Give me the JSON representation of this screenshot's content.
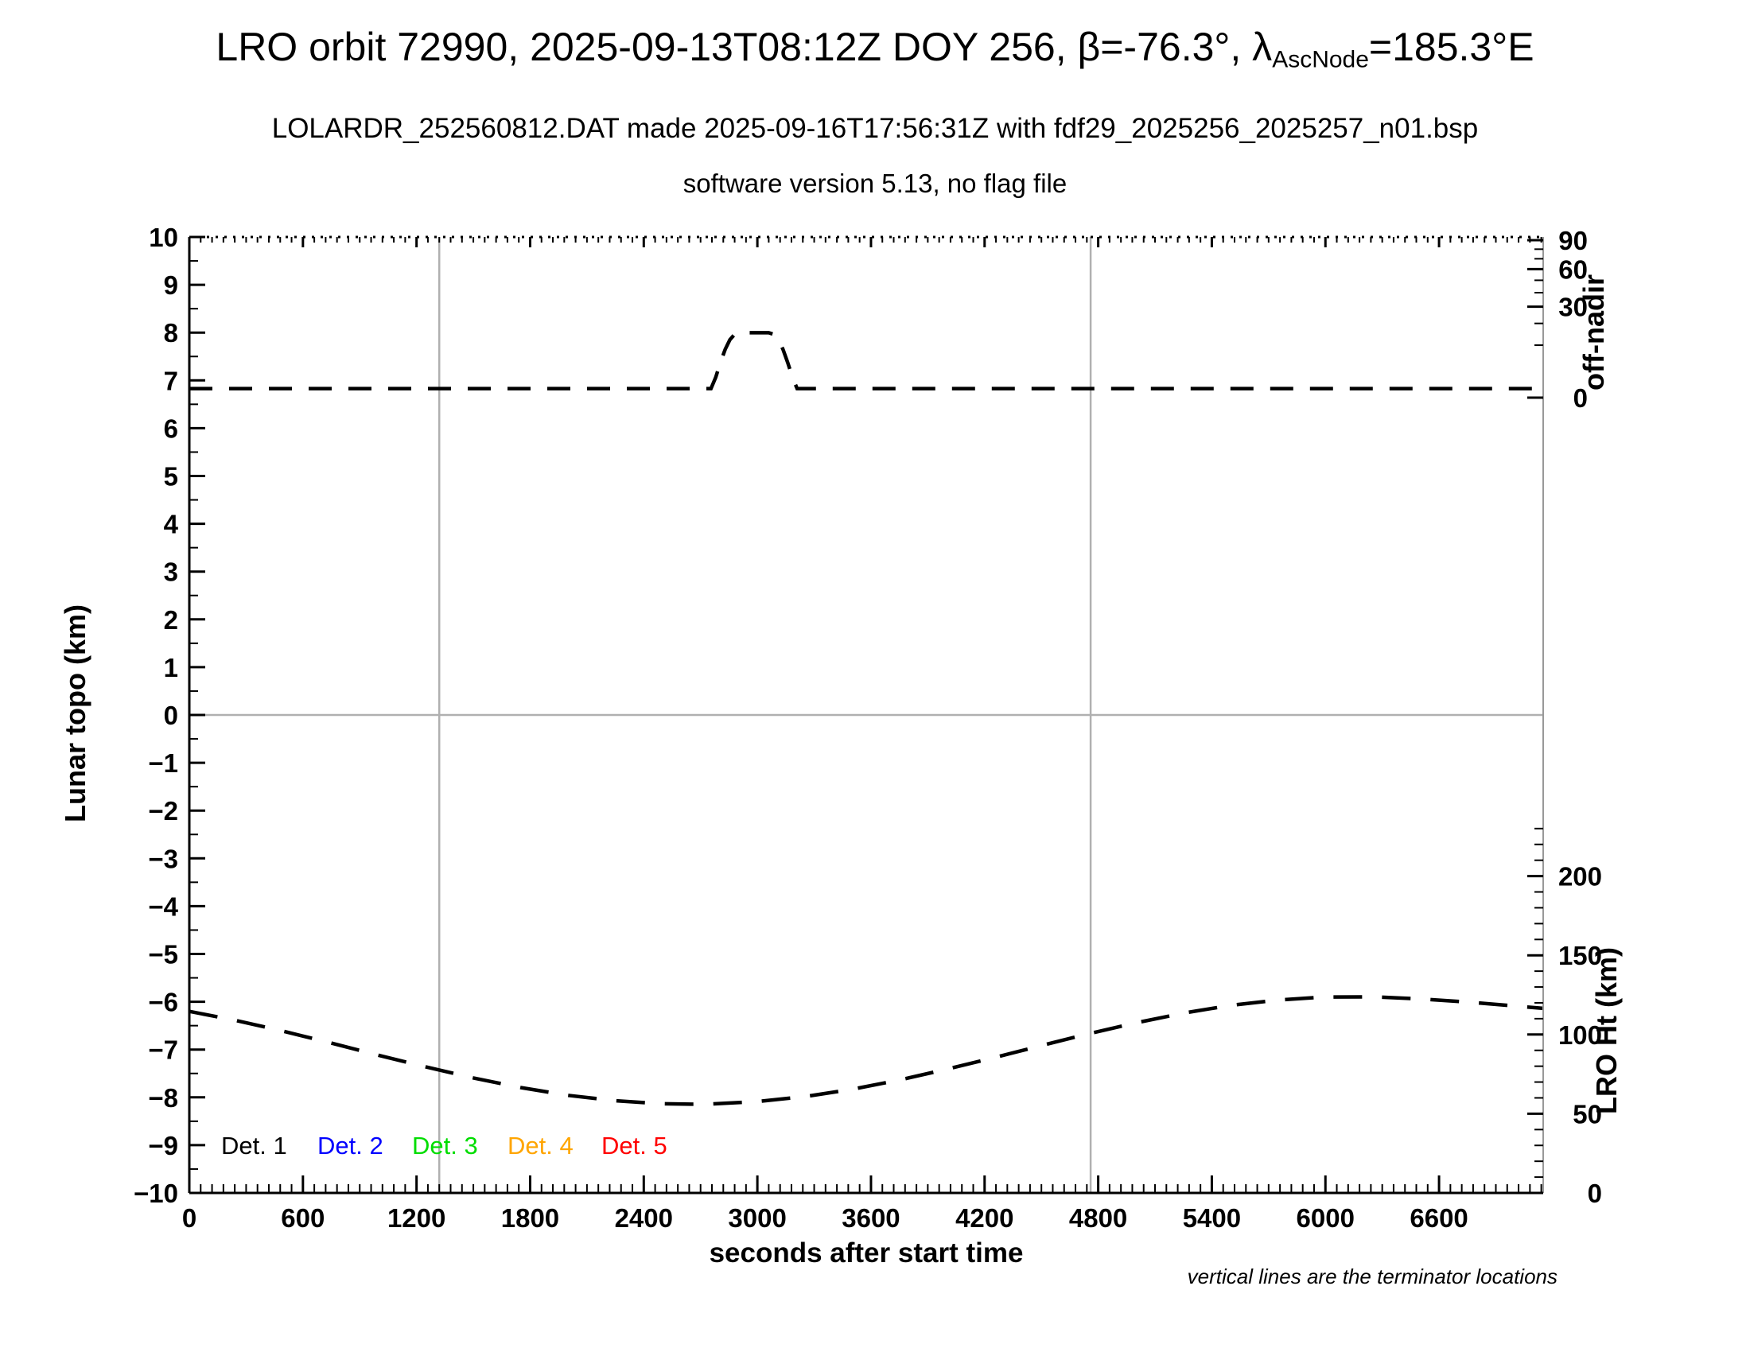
{
  "header": {
    "title_prefix": "LRO orbit 72990, 2025-09-13T08:12Z DOY 256, β=-76.3°, λ",
    "title_subscript": "AscNode",
    "title_suffix": "=185.3°E",
    "subtitle_line1": "LOLARDR_252560812.DAT made 2025-09-16T17:56:31Z with fdf29_2025256_2025257_n01.bsp",
    "subtitle_line2": "software version 5.13, no flag file"
  },
  "axis_titles": {
    "left": "Lunar topo (km)",
    "bottom": "seconds after start time",
    "right_top": "off-nadir",
    "right_bottom": "LRO Ht (km)"
  },
  "footnote": {
    "text": "vertical lines are the terminator locations"
  },
  "legend": {
    "items": [
      {
        "label": "Det. 1",
        "color": "#000000"
      },
      {
        "label": "Det. 2",
        "color": "#0000ff"
      },
      {
        "label": "Det. 3",
        "color": "#00dd00"
      },
      {
        "label": "Det. 4",
        "color": "#ffa500"
      },
      {
        "label": "Det. 5",
        "color": "#ff0000"
      }
    ]
  },
  "chart_data": {
    "type": "line",
    "title": "LRO orbit 72990, 2025-09-13T08:12Z DOY 256, β=-76.3°, λAscNode=185.3°E",
    "subtitle1": "LOLARDR_252560812.DAT made 2025-09-16T17:56:31Z with fdf29_2025256_2025257_n01.bsp",
    "subtitle2": "software version 5.13, no flag file",
    "x_axis": {
      "label": "seconds after start time",
      "min": 0,
      "max": 7150,
      "major_tick_step": 600,
      "minor_tick_step": 60,
      "tick_labels": [
        "0",
        "600",
        "1200",
        "1800",
        "2400",
        "3000",
        "3600",
        "4200",
        "4800",
        "5400",
        "6000",
        "6600"
      ]
    },
    "y_axis_left": {
      "label": "Lunar topo (km)",
      "min": -10,
      "max": 10,
      "major_tick_step": 1,
      "minor_tick_step": 0.5,
      "tick_labels": [
        "10",
        "9",
        "8",
        "7",
        "6",
        "5",
        "4",
        "3",
        "2",
        "1",
        "0",
        "−1",
        "−2",
        "−3",
        "−4",
        "−5",
        "−6",
        "−7",
        "−8",
        "−9",
        "−10"
      ]
    },
    "y_axis_right_top": {
      "label": "off-nadir",
      "unit": "degrees",
      "tick_labels": [
        "90",
        "60",
        "30",
        "0"
      ],
      "minor_tick_step_deg": 10,
      "scale": "nonlinear, spacing compressed toward 90 (sqrt spacing)"
    },
    "y_axis_right_bottom": {
      "label": "LRO Ht (km)",
      "min": 0,
      "max": 230,
      "tick_labels": [
        "200",
        "150",
        "100",
        "50",
        "0"
      ],
      "minor_tick_step_km": 10
    },
    "grid": {
      "horizontal_zero_line_at_topo": 0,
      "terminator_lines_seconds": [
        1320,
        4760
      ],
      "line_color": "#b0b0b0"
    },
    "annotations": [
      "vertical lines are the terminator locations"
    ],
    "legend_entries": [
      "Det. 1",
      "Det. 2",
      "Det. 3",
      "Det. 4",
      "Det. 5"
    ],
    "legend_position": "inside plot, lower left, at topo ≈ −9",
    "series": [
      {
        "name": "off-nadir angle",
        "axis": "right_top",
        "unit": "deg",
        "color": "#000000",
        "line_style": "dashed",
        "points": [
          [
            0,
            0.3
          ],
          [
            2755,
            0.3
          ],
          [
            2780,
            1.5
          ],
          [
            2805,
            4.5
          ],
          [
            2830,
            8.5
          ],
          [
            2855,
            12.2
          ],
          [
            2880,
            14.6
          ],
          [
            2910,
            15.3
          ],
          [
            3060,
            15.3
          ],
          [
            3085,
            14.6
          ],
          [
            3110,
            12.2
          ],
          [
            3135,
            8.5
          ],
          [
            3160,
            4.5
          ],
          [
            3185,
            1.5
          ],
          [
            3210,
            0.3
          ],
          [
            7150,
            0.3
          ]
        ]
      },
      {
        "name": "LRO height",
        "axis": "right_bottom",
        "unit": "km",
        "color": "#000000",
        "line_style": "dashed",
        "points": [
          [
            0,
            114.6
          ],
          [
            250,
            108.8
          ],
          [
            500,
            102.0
          ],
          [
            750,
            94.6
          ],
          [
            1000,
            86.9
          ],
          [
            1250,
            79.5
          ],
          [
            1500,
            72.6
          ],
          [
            1750,
            66.5
          ],
          [
            2000,
            61.6
          ],
          [
            2250,
            58.2
          ],
          [
            2500,
            56.3
          ],
          [
            2650,
            56.0
          ],
          [
            2750,
            56.1
          ],
          [
            3000,
            57.7
          ],
          [
            3250,
            60.8
          ],
          [
            3500,
            65.4
          ],
          [
            3750,
            71.3
          ],
          [
            4000,
            78.1
          ],
          [
            4250,
            85.4
          ],
          [
            4500,
            93.0
          ],
          [
            4750,
            100.5
          ],
          [
            5000,
            107.4
          ],
          [
            5250,
            113.5
          ],
          [
            5500,
            118.4
          ],
          [
            5750,
            121.8
          ],
          [
            6000,
            123.7
          ],
          [
            6250,
            123.8
          ],
          [
            6500,
            122.5
          ],
          [
            6750,
            120.5
          ],
          [
            7000,
            118.0
          ],
          [
            7150,
            116.5
          ]
        ]
      }
    ]
  }
}
